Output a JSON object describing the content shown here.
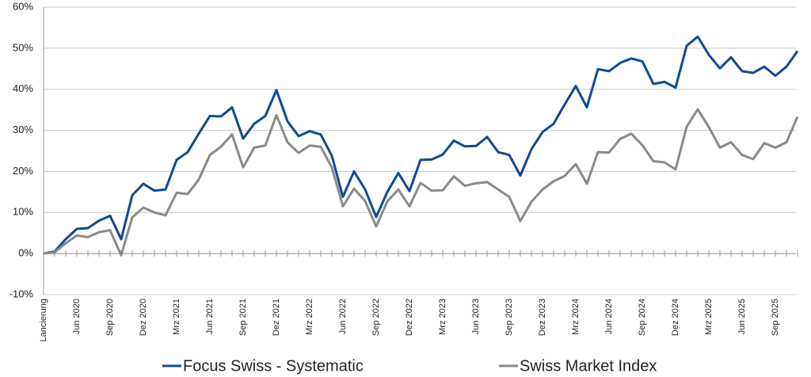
{
  "chart_data": {
    "type": "line",
    "categories": [
      "Lancierung",
      null,
      null,
      "Jun 2020",
      null,
      null,
      "Sep 2020",
      null,
      null,
      "Dez 2020",
      null,
      null,
      "Mrz 2021",
      null,
      null,
      "Jun 2021",
      null,
      null,
      "Sep 2021",
      null,
      null,
      "Dez 2021",
      null,
      null,
      "Mrz 2022",
      null,
      null,
      "Jun 2022",
      null,
      null,
      "Sep 2022",
      null,
      null,
      "Dez 2022",
      null,
      null,
      "Mrz 2023",
      null,
      null,
      "Jun 2023",
      null,
      null,
      "Sep 2023",
      null,
      null,
      "Dez 2023",
      null,
      null,
      "Mrz 2024",
      null,
      null,
      "Jun 2024",
      null,
      null,
      "Sep 2024",
      null,
      null,
      "Dez 2024",
      null,
      null,
      "Mrz 2025",
      null,
      null,
      "Jun 2025",
      null,
      null,
      "Sep 2025",
      null,
      null
    ],
    "series": [
      {
        "name": "Focus Swiss - Systematic",
        "color": "#0f4a93",
        "values": [
          0,
          0.5,
          3.5,
          6,
          6.2,
          8,
          9.2,
          3.5,
          14.2,
          17,
          15.3,
          15.6,
          22.8,
          24.7,
          29.2,
          33.5,
          33.4,
          35.6,
          28,
          31.6,
          33.5,
          39.8,
          32.2,
          28.6,
          29.8,
          29,
          23.8,
          13.8,
          20,
          15.6,
          8.9,
          15,
          19.6,
          15.2,
          22.8,
          22.9,
          24.1,
          27.5,
          26.1,
          26.2,
          28.4,
          24.7,
          24,
          19,
          25.4,
          29.6,
          31.6,
          36.3,
          40.8,
          35.6,
          44.9,
          44.4,
          46.4,
          47.5,
          46.8,
          41.3,
          41.8,
          40.4,
          50.6,
          52.8,
          48.4,
          45.1,
          47.8,
          44.4,
          44,
          45.5,
          43.3,
          45.5,
          49.3
        ]
      },
      {
        "name": "Swiss Market Index",
        "color": "#8a8a8a",
        "values": [
          0,
          0.3,
          2.5,
          4.4,
          4,
          5.2,
          5.7,
          -0.4,
          8.8,
          11.2,
          10,
          9.3,
          14.8,
          14.5,
          18,
          24,
          26,
          29,
          21,
          25.8,
          26.3,
          33.7,
          27.1,
          24.5,
          26.3,
          26,
          21,
          11.5,
          15.8,
          12.8,
          6.6,
          12.7,
          15.6,
          11.5,
          17.2,
          15.3,
          15.4,
          18.8,
          16.5,
          17.1,
          17.4,
          15.6,
          13.8,
          7.9,
          12.6,
          15.6,
          17.6,
          18.9,
          21.8,
          17,
          24.7,
          24.6,
          27.9,
          29.2,
          26.4,
          22.5,
          22.2,
          20.5,
          30.9,
          35.1,
          30.8,
          25.8,
          27.1,
          24,
          23,
          26.9,
          25.8,
          27.1,
          33.3
        ]
      }
    ],
    "ylim": [
      -10,
      60
    ],
    "yticks": [
      {
        "value": -10,
        "label": "-10%"
      },
      {
        "value": 0,
        "label": "0%"
      },
      {
        "value": 10,
        "label": "10%"
      },
      {
        "value": 20,
        "label": "20%"
      },
      {
        "value": 30,
        "label": "30%"
      },
      {
        "value": 40,
        "label": "40%"
      },
      {
        "value": 50,
        "label": "50%"
      },
      {
        "value": 60,
        "label": "60%"
      }
    ],
    "grid": true,
    "legend": "bottom"
  }
}
